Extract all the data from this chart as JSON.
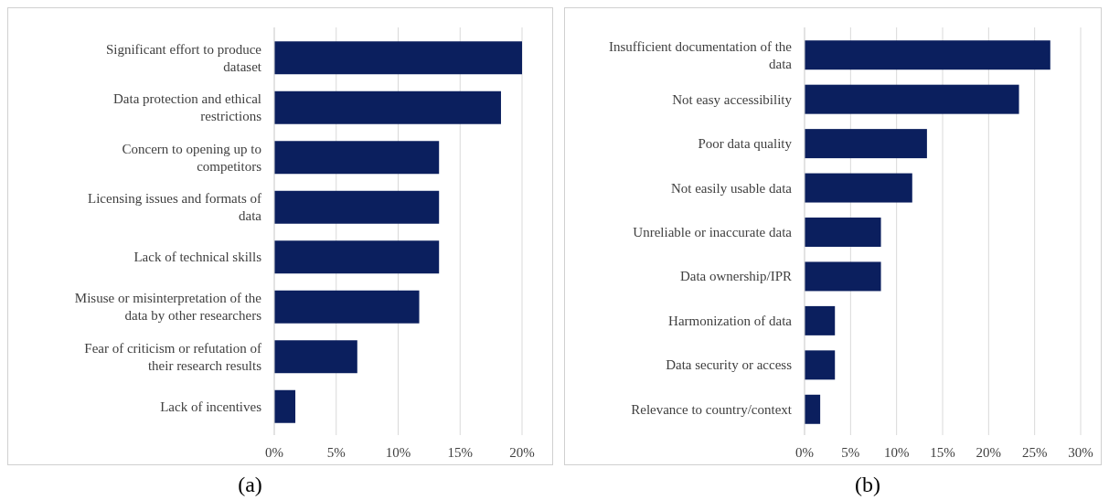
{
  "chart_data": [
    {
      "type": "bar",
      "orientation": "horizontal",
      "categories": [
        "Significant effort to produce dataset",
        "Data protection and ethical restrictions",
        "Concern to opening up to competitors",
        "Licensing issues and formats of data",
        "Lack of technical skills",
        "Misuse or misinterpretation of the data by other researchers",
        "Fear of criticism or refutation of their research results",
        "Lack of incentives"
      ],
      "values": [
        20,
        18.3,
        13.3,
        13.3,
        13.3,
        11.7,
        6.7,
        1.7
      ],
      "color": "#0b1f5e",
      "xlim": [
        0,
        20
      ],
      "xticks": [
        {
          "value": 0,
          "label": "0%"
        },
        {
          "value": 5,
          "label": "5%"
        },
        {
          "value": 10,
          "label": "10%"
        },
        {
          "value": 15,
          "label": "15%"
        },
        {
          "value": 20,
          "label": "20%"
        }
      ],
      "grid": "x",
      "annotations": [
        "(a)"
      ]
    },
    {
      "type": "bar",
      "orientation": "horizontal",
      "categories": [
        "Insufficient documentation of the data",
        "Not easy accessibility",
        "Poor data quality",
        "Not easily usable data",
        "Unreliable or inaccurate data",
        "Data ownership/IPR",
        "Harmonization of data",
        "Data security or access",
        "Relevance to country/context"
      ],
      "values": [
        26.7,
        23.3,
        13.3,
        11.7,
        8.3,
        8.3,
        3.3,
        3.3,
        1.7
      ],
      "color": "#0b1f5e",
      "xlim": [
        0,
        30
      ],
      "xticks": [
        {
          "value": 0,
          "label": "0%"
        },
        {
          "value": 5,
          "label": "5%"
        },
        {
          "value": 10,
          "label": "10%"
        },
        {
          "value": 15,
          "label": "15%"
        },
        {
          "value": 20,
          "label": "20%"
        },
        {
          "value": 25,
          "label": "25%"
        },
        {
          "value": 30,
          "label": "30%"
        }
      ],
      "grid": "x",
      "annotations": [
        "(b)"
      ]
    }
  ]
}
